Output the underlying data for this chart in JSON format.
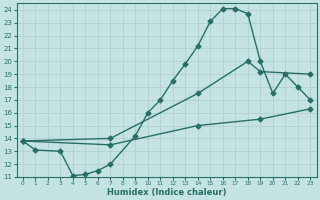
{
  "xlabel": "Humidex (Indice chaleur)",
  "xlim": [
    -0.5,
    23.5
  ],
  "ylim": [
    11,
    24.5
  ],
  "yticks": [
    11,
    12,
    13,
    14,
    15,
    16,
    17,
    18,
    19,
    20,
    21,
    22,
    23,
    24
  ],
  "xticks": [
    0,
    1,
    2,
    3,
    4,
    5,
    6,
    7,
    8,
    9,
    10,
    11,
    12,
    13,
    14,
    15,
    16,
    17,
    18,
    19,
    20,
    21,
    22,
    23
  ],
  "bg_color": "#c4e4e4",
  "line_color": "#2a6e64",
  "grid_color": "#b0cccc",
  "line1_x": [
    0,
    1,
    3,
    4,
    5,
    6,
    7,
    9,
    10,
    11,
    12,
    13,
    14,
    15,
    16,
    17,
    18,
    19,
    20,
    21,
    22,
    23
  ],
  "line1_y": [
    13.8,
    13.1,
    13.0,
    11.1,
    11.2,
    11.5,
    12.0,
    14.2,
    16.0,
    17.0,
    18.5,
    19.8,
    21.2,
    23.1,
    24.1,
    24.1,
    23.7,
    20.0,
    17.5,
    19.0,
    18.0,
    17.0
  ],
  "line2_x": [
    0,
    7,
    14,
    18,
    19,
    23
  ],
  "line2_y": [
    13.8,
    14.0,
    17.5,
    20.0,
    19.2,
    19.0
  ],
  "line3_x": [
    0,
    7,
    14,
    19,
    23
  ],
  "line3_y": [
    13.8,
    13.5,
    15.0,
    15.5,
    16.3
  ],
  "marker_size": 2.5,
  "linewidth": 1.0
}
